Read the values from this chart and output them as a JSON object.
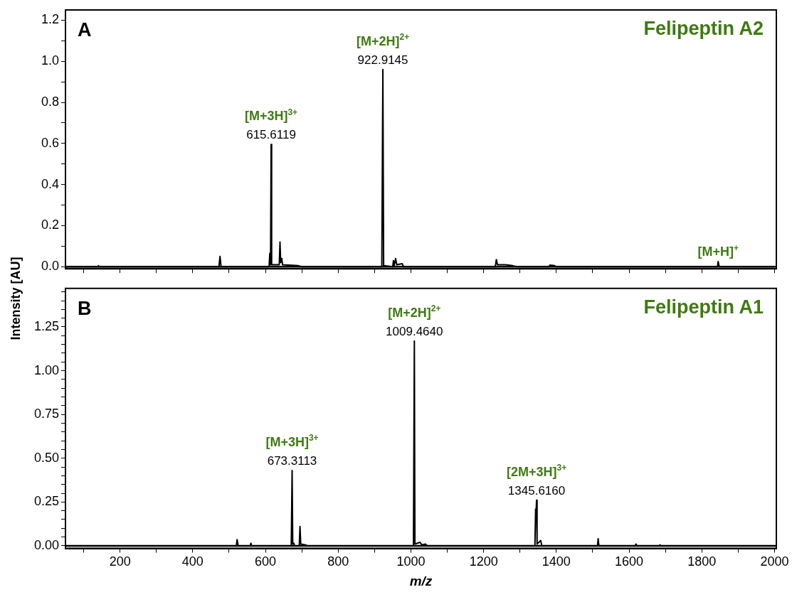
{
  "chart_data": [
    {
      "type": "line",
      "title": "Felipeptin A2",
      "ylabel": "Intensity [AU]",
      "marker": "none",
      "line_style": "solid",
      "tick_labels": "y",
      "xlim": [
        50,
        2005
      ],
      "ylim": [
        -0.01,
        1.25
      ],
      "xticks": [
        {
          "value": 100,
          "label": null
        },
        200,
        {
          "value": 300,
          "label": null
        },
        400,
        {
          "value": 500,
          "label": null
        },
        600,
        {
          "value": 700,
          "label": null
        },
        800,
        {
          "value": 900,
          "label": null
        },
        1000,
        {
          "value": 1100,
          "label": null
        },
        1200,
        {
          "value": 1300,
          "label": null
        },
        1400,
        {
          "value": 1500,
          "label": null
        },
        1600,
        {
          "value": 1700,
          "label": null
        },
        1800,
        {
          "value": 1900,
          "label": null
        },
        2000
      ],
      "yticks": [
        {
          "value": 0,
          "label": "0.0"
        },
        {
          "value": 0.1,
          "label": null
        },
        {
          "value": 0.2,
          "label": "0.2"
        },
        {
          "value": 0.3,
          "label": null
        },
        {
          "value": 0.4,
          "label": "0.4"
        },
        {
          "value": 0.5,
          "label": null
        },
        {
          "value": 0.6,
          "label": "0.6"
        },
        {
          "value": 0.7,
          "label": null
        },
        {
          "value": 0.8,
          "label": "0.8"
        },
        {
          "value": 0.9,
          "label": null
        },
        {
          "value": 1,
          "label": "1.0"
        },
        {
          "value": 1.1,
          "label": null
        },
        {
          "value": 1.2,
          "label": "1.2"
        }
      ],
      "series": [
        {
          "color": "#000000",
          "x": [
            50,
            140,
            141,
            142,
            472,
            475,
            478,
            610,
            612,
            614,
            615.6,
            617,
            638,
            640,
            642,
            645,
            647,
            690,
            700,
            920,
            922.9,
            925,
            950,
            952,
            954,
            958,
            961,
            976,
            980,
            1232,
            1235,
            1238,
            1260,
            1280,
            1290,
            1380,
            1382,
            1395,
            1400,
            1843,
            1845,
            1848,
            2005
          ],
          "values": [
            0,
            0,
            0.005,
            0,
            0,
            0.05,
            0,
            0,
            0.065,
            0.01,
            0.595,
            0.01,
            0.01,
            0.12,
            0.02,
            0.04,
            0.01,
            0.005,
            0,
            0,
            0.96,
            0.005,
            0,
            0.03,
            0.005,
            0.04,
            0.01,
            0.015,
            0,
            0,
            0.035,
            0.01,
            0.01,
            0.005,
            0,
            0,
            0.008,
            0.005,
            0,
            0,
            0.025,
            0,
            0
          ]
        }
      ],
      "annotations": [
        "A",
        {
          "text": "[M+3H]$^{3+}$",
          "x": 615.6,
          "y": 0.595
        },
        {
          "text": "615.6119",
          "x": 615.6,
          "y": 0.595
        },
        {
          "text": "[M+2H]$^{2+}$",
          "x": 922.9,
          "y": 0.96
        },
        {
          "text": "922.9145",
          "x": 922.9,
          "y": 0.96
        },
        {
          "text": "[M+H]$^{+}$",
          "x": 1845,
          "y": 0.025
        }
      ]
    },
    {
      "type": "line",
      "title": "Felipeptin A1",
      "xlabel": "m/z",
      "marker": "none",
      "line_style": "solid",
      "xlim": [
        50,
        2005
      ],
      "ylim": [
        -0.015,
        1.47
      ],
      "xticks": [
        {
          "value": 100,
          "label": null
        },
        200,
        {
          "value": 300,
          "label": null
        },
        400,
        {
          "value": 500,
          "label": null
        },
        600,
        {
          "value": 700,
          "label": null
        },
        800,
        {
          "value": 900,
          "label": null
        },
        1000,
        {
          "value": 1100,
          "label": null
        },
        1200,
        {
          "value": 1300,
          "label": null
        },
        1400,
        {
          "value": 1500,
          "label": null
        },
        1600,
        {
          "value": 1700,
          "label": null
        },
        1800,
        {
          "value": 1900,
          "label": null
        },
        2000
      ],
      "yticks": [
        {
          "value": 0,
          "label": "0.00"
        },
        {
          "value": 0.05,
          "label": null
        },
        {
          "value": 0.1,
          "label": null
        },
        {
          "value": 0.15,
          "label": null
        },
        {
          "value": 0.2,
          "label": null
        },
        {
          "value": 0.25,
          "label": "0.25"
        },
        {
          "value": 0.3,
          "label": null
        },
        {
          "value": 0.35,
          "label": null
        },
        {
          "value": 0.4,
          "label": null
        },
        {
          "value": 0.45,
          "label": null
        },
        {
          "value": 0.5,
          "label": "0.50"
        },
        {
          "value": 0.55,
          "label": null
        },
        {
          "value": 0.6,
          "label": null
        },
        {
          "value": 0.65,
          "label": null
        },
        {
          "value": 0.7,
          "label": null
        },
        {
          "value": 0.75,
          "label": "0.75"
        },
        {
          "value": 0.8,
          "label": null
        },
        {
          "value": 0.85,
          "label": null
        },
        {
          "value": 0.9,
          "label": null
        },
        {
          "value": 0.95,
          "label": null
        },
        {
          "value": 1,
          "label": "1.00"
        },
        {
          "value": 1.05,
          "label": null
        },
        {
          "value": 1.1,
          "label": null
        },
        {
          "value": 1.15,
          "label": null
        },
        {
          "value": 1.2,
          "label": null
        },
        {
          "value": 1.25,
          "label": "1.25"
        },
        {
          "value": 1.3,
          "label": null
        },
        {
          "value": 1.35,
          "label": null
        },
        {
          "value": 1.4,
          "label": null
        },
        {
          "value": 1.45,
          "label": null
        }
      ],
      "series": [
        {
          "color": "#000000",
          "x": [
            50,
            520,
            522,
            525,
            558,
            560,
            562,
            671,
            673.3,
            675,
            678,
            680,
            693,
            695,
            697,
            710,
            715,
            1007,
            1009.5,
            1011,
            1025,
            1030,
            1040,
            1045,
            1341,
            1343,
            1344,
            1345.6,
            1347,
            1357,
            1360,
            1513,
            1515,
            1517,
            1617,
            1619,
            1622,
            1683,
            1685,
            1688,
            2005
          ],
          "values": [
            0,
            0,
            0.035,
            0,
            0,
            0.015,
            0,
            0,
            0.43,
            0.01,
            0.015,
            0,
            0,
            0.11,
            0.01,
            0.005,
            0,
            0,
            1.17,
            0.01,
            0.02,
            0.005,
            0.01,
            0,
            0,
            0.21,
            0.18,
            0.26,
            0.01,
            0.03,
            0,
            0,
            0.04,
            0,
            0,
            0.01,
            0,
            0,
            0.005,
            0,
            0
          ]
        }
      ],
      "annotations": [
        "B",
        {
          "text": "[M+3H]$^{3+}$",
          "x": 673.3,
          "y": 0.43
        },
        {
          "text": "673.3113",
          "x": 673.3,
          "y": 0.43
        },
        {
          "text": "[M+2H]$^{2+}$",
          "x": 1009.5,
          "y": 1.17
        },
        {
          "text": "1009.4640",
          "x": 1009.5,
          "y": 1.17
        },
        {
          "text": "[2M+3H]$^{3+}$",
          "x": 1345.6,
          "y": 0.26
        },
        {
          "text": "1345.6160",
          "x": 1345.6,
          "y": 0.26
        }
      ]
    }
  ]
}
